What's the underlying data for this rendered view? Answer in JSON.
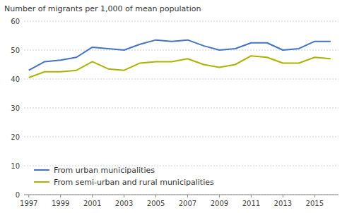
{
  "chart_data": {
    "type": "line",
    "ylabel": "Number of migrants per 1,000 of mean population",
    "x": [
      1997,
      1998,
      1999,
      2000,
      2001,
      2002,
      2003,
      2004,
      2005,
      2006,
      2007,
      2008,
      2009,
      2010,
      2011,
      2012,
      2013,
      2014,
      2015,
      2016
    ],
    "series": [
      {
        "name": "From urban municipalities",
        "color": "#4472C4",
        "values": [
          43.0,
          46.0,
          46.5,
          47.5,
          51.0,
          50.5,
          50.0,
          52.0,
          53.5,
          53.0,
          53.5,
          51.5,
          50.0,
          50.5,
          52.5,
          52.5,
          50.0,
          50.5,
          53.0,
          53.0
        ]
      },
      {
        "name": "From semi-urban and rural municipalities",
        "color": "#aab400",
        "values": [
          40.5,
          42.5,
          42.5,
          43.0,
          46.0,
          43.5,
          43.0,
          45.5,
          46.0,
          46.0,
          47.0,
          45.0,
          44.0,
          45.0,
          48.0,
          47.5,
          45.5,
          45.5,
          47.5,
          47.0
        ]
      }
    ],
    "xlim": [
      1996.7,
      2016.5
    ],
    "xticks": [
      1997,
      1999,
      2001,
      2003,
      2005,
      2007,
      2009,
      2011,
      2013,
      2015
    ],
    "ylim": [
      0,
      60
    ],
    "yticks": [
      0,
      10,
      20,
      30,
      40,
      50,
      60
    ],
    "grid": true,
    "legend": "lower left"
  }
}
